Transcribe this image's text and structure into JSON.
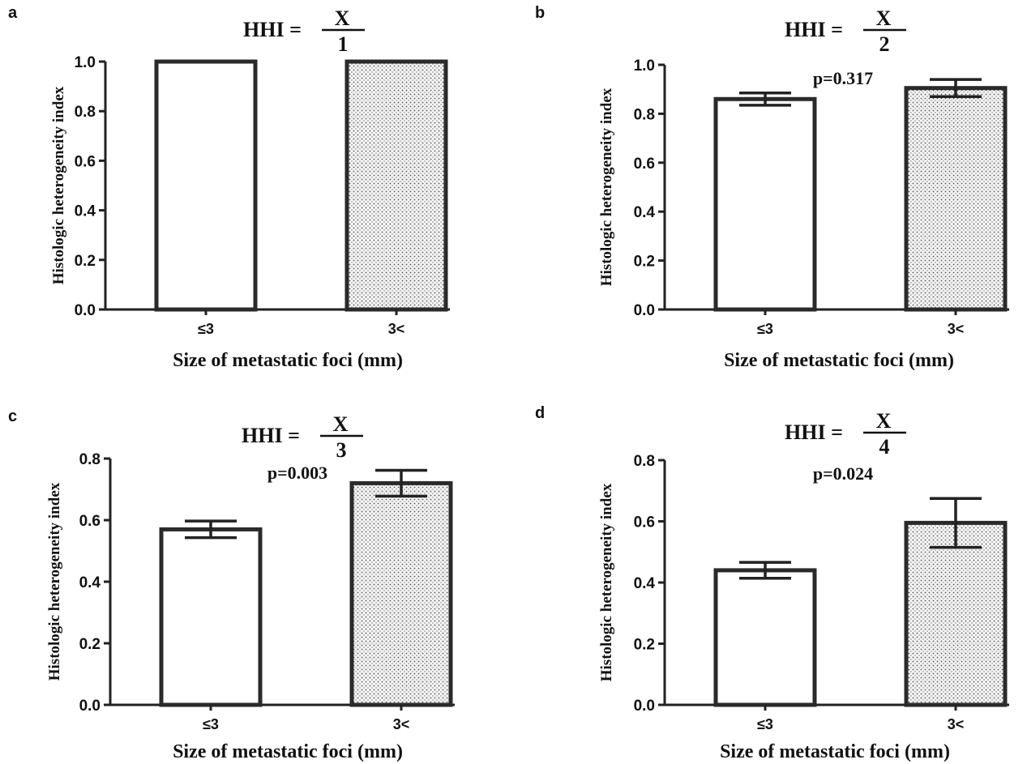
{
  "chart_data": [
    {
      "type": "bar",
      "panel": "a",
      "formula": {
        "lhs": "HHI =",
        "numerator": "X",
        "denominator": "1"
      },
      "categories": [
        "≤3",
        "3<"
      ],
      "values": [
        1.0,
        1.0
      ],
      "errors": [
        0,
        0
      ],
      "p_value": "",
      "ylabel": "Histologic heterogeneity index",
      "xlabel": "Size of metastatic foci (mm)",
      "ylim": [
        0,
        1.0
      ],
      "yticks": [
        "0.0",
        "0.2",
        "0.4",
        "0.6",
        "0.8",
        "1.0"
      ],
      "bar_fills": [
        "white",
        "dotted"
      ]
    },
    {
      "type": "bar",
      "panel": "b",
      "formula": {
        "lhs": "HHI =",
        "numerator": "X",
        "denominator": "2"
      },
      "categories": [
        "≤3",
        "3<"
      ],
      "values": [
        0.86,
        0.905
      ],
      "errors": [
        0.025,
        0.035
      ],
      "p_value": "p=0.317",
      "ylabel": "Histologic heterogeneity index",
      "xlabel": "Size of metastatic foci (mm)",
      "ylim": [
        0,
        1.0
      ],
      "yticks": [
        "0.0",
        "0.2",
        "0.4",
        "0.6",
        "0.8",
        "1.0"
      ],
      "bar_fills": [
        "white",
        "dotted"
      ]
    },
    {
      "type": "bar",
      "panel": "c",
      "formula": {
        "lhs": "HHI =",
        "numerator": "X",
        "denominator": "3"
      },
      "categories": [
        "≤3",
        "3<"
      ],
      "values": [
        0.57,
        0.72
      ],
      "errors": [
        0.027,
        0.042
      ],
      "p_value": "p=0.003",
      "ylabel": "Histologic heterogeneity index",
      "xlabel": "Size of metastatic foci (mm)",
      "ylim": [
        0,
        0.8
      ],
      "yticks": [
        "0.0",
        "0.2",
        "0.4",
        "0.6",
        "0.8"
      ],
      "bar_fills": [
        "white",
        "dotted"
      ]
    },
    {
      "type": "bar",
      "panel": "d",
      "formula": {
        "lhs": "HHI =",
        "numerator": "X",
        "denominator": "4"
      },
      "categories": [
        "≤3",
        "3<"
      ],
      "values": [
        0.44,
        0.595
      ],
      "errors": [
        0.026,
        0.08
      ],
      "p_value": "p=0.024",
      "ylabel": "Histologic heterogeneity index",
      "xlabel": "Size of metastatic foci (mm)",
      "ylim": [
        0,
        0.8
      ],
      "yticks": [
        "0.0",
        "0.2",
        "0.4",
        "0.6",
        "0.8"
      ],
      "bar_fills": [
        "white",
        "dotted"
      ]
    }
  ],
  "colors": {
    "ink": "#111111",
    "bar_outline": "#2a2a2a",
    "dot_fill": "#555555",
    "background": "#ffffff"
  }
}
